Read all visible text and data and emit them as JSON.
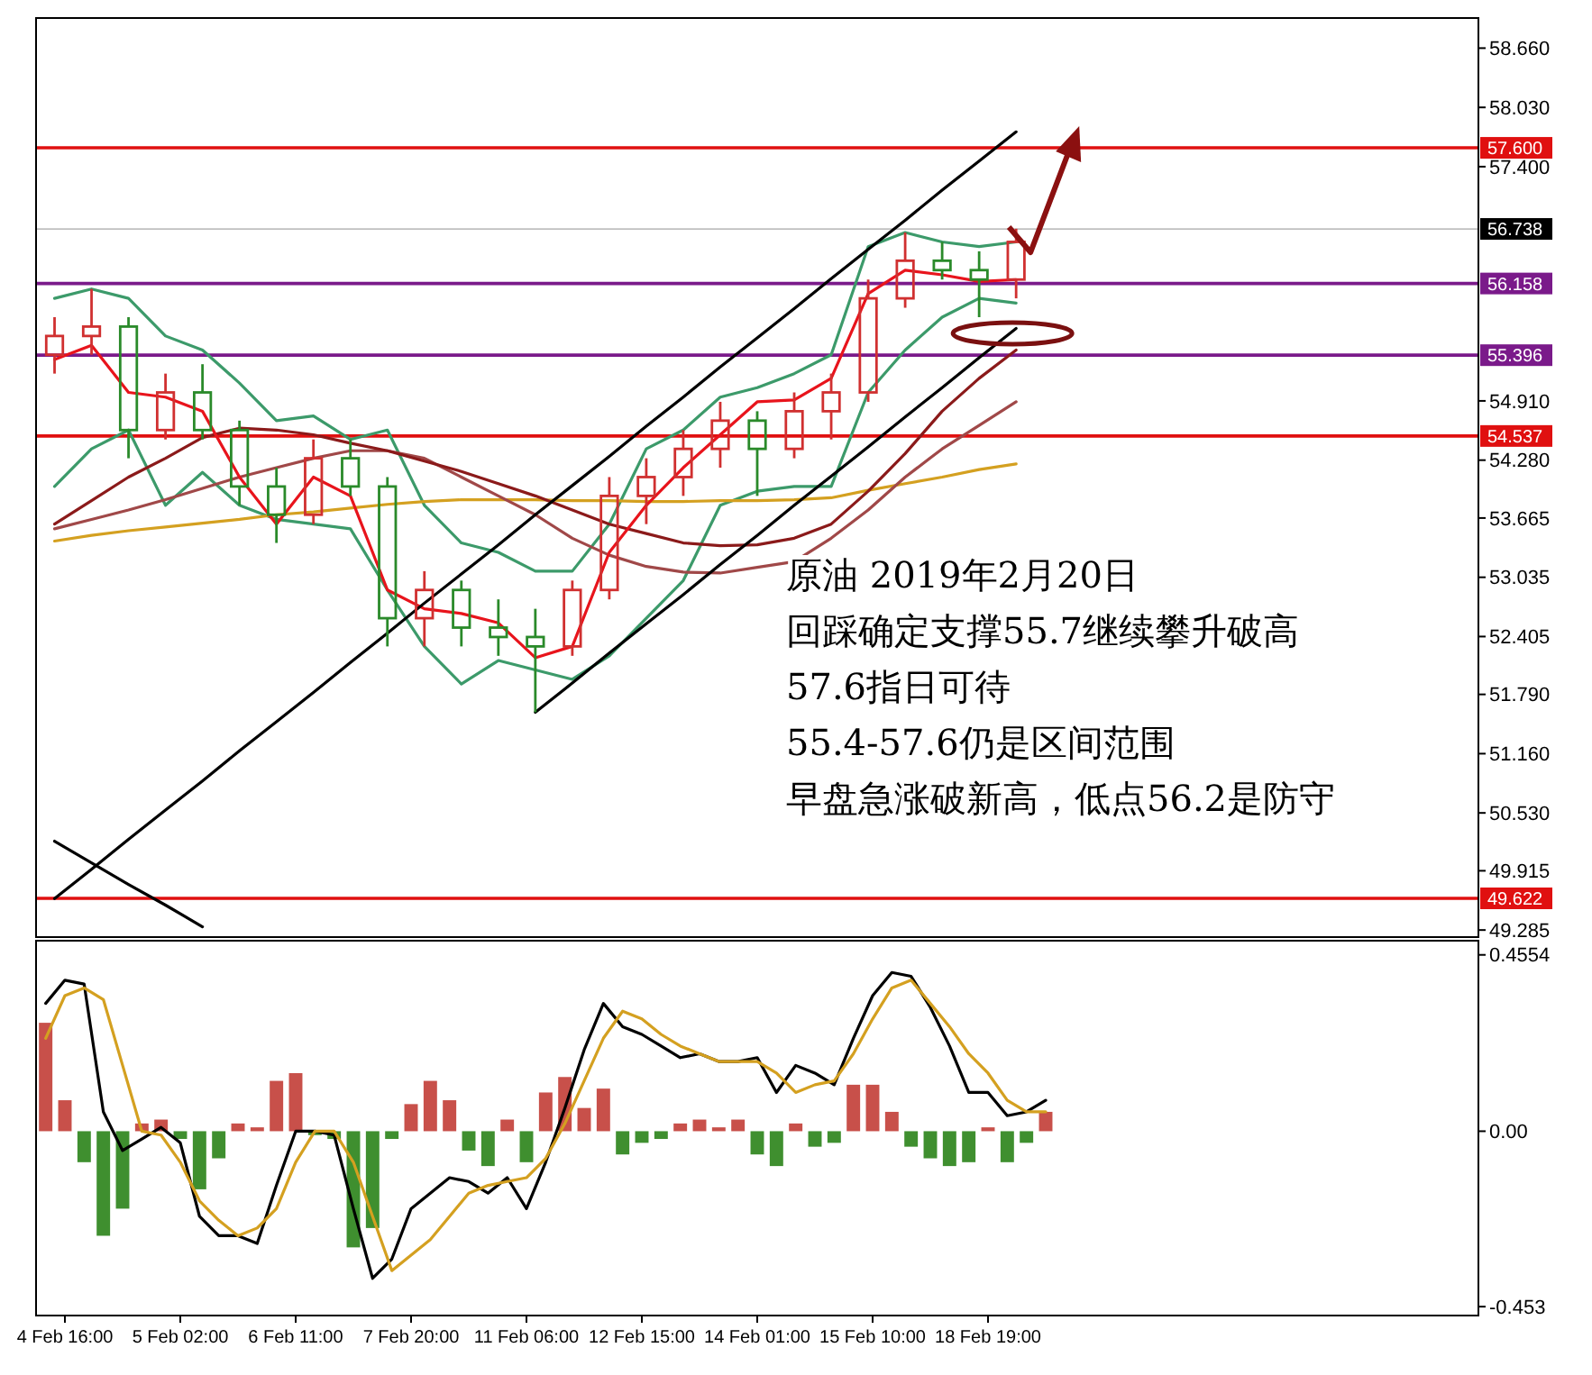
{
  "chart_data": [
    {
      "type": "candlestick",
      "ylim": [
        49.21,
        58.98
      ],
      "tick_labels": "y",
      "yticks": [
        {
          "value": 58.66,
          "label": "58.660"
        },
        {
          "value": 58.03,
          "label": "58.030"
        },
        {
          "value": 57.4,
          "label": "57.400"
        },
        {
          "value": 54.91,
          "label": "54.910"
        },
        {
          "value": 54.28,
          "label": "54.280"
        },
        {
          "value": 53.665,
          "label": "53.665"
        },
        {
          "value": 53.035,
          "label": "53.035"
        },
        {
          "value": 52.405,
          "label": "52.405"
        },
        {
          "value": 51.79,
          "label": "51.790"
        },
        {
          "value": 51.16,
          "label": "51.160"
        },
        {
          "value": 50.53,
          "label": "50.530"
        },
        {
          "value": 49.915,
          "label": "49.915"
        },
        {
          "value": 49.285,
          "label": "49.285"
        }
      ],
      "categories": [
        null,
        null,
        null,
        null,
        null,
        null,
        null,
        null,
        null,
        null,
        null,
        null,
        null,
        null,
        null,
        null,
        null,
        null,
        null,
        null,
        null,
        null,
        null,
        null,
        null,
        null,
        null,
        null,
        null,
        null,
        null,
        null,
        null,
        null,
        null,
        null,
        null,
        null,
        null
      ],
      "ohlc": [
        [
          55.4,
          55.8,
          55.2,
          55.6
        ],
        [
          55.6,
          56.1,
          55.4,
          55.7
        ],
        [
          55.7,
          55.8,
          54.3,
          54.6
        ],
        [
          54.6,
          55.2,
          54.5,
          55.0
        ],
        [
          55.0,
          55.3,
          54.5,
          54.6
        ],
        [
          54.6,
          54.7,
          53.8,
          54.0
        ],
        [
          54.0,
          54.2,
          53.4,
          53.7
        ],
        [
          53.7,
          54.5,
          53.6,
          54.3
        ],
        [
          54.3,
          54.5,
          53.9,
          54.0
        ],
        [
          54.0,
          54.1,
          52.3,
          52.6
        ],
        [
          52.6,
          53.1,
          52.3,
          52.9
        ],
        [
          52.9,
          53.0,
          52.3,
          52.5
        ],
        [
          52.5,
          52.8,
          52.2,
          52.4
        ],
        [
          52.4,
          52.7,
          51.6,
          52.3
        ],
        [
          52.3,
          53.0,
          52.2,
          52.9
        ],
        [
          52.9,
          54.1,
          52.8,
          53.9
        ],
        [
          53.9,
          54.3,
          53.6,
          54.1
        ],
        [
          54.1,
          54.6,
          53.9,
          54.4
        ],
        [
          54.4,
          54.9,
          54.2,
          54.7
        ],
        [
          54.7,
          54.8,
          53.9,
          54.4
        ],
        [
          54.4,
          55.0,
          54.3,
          54.8
        ],
        [
          54.8,
          55.2,
          54.5,
          55.0
        ],
        [
          55.0,
          56.2,
          54.9,
          56.0
        ],
        [
          56.0,
          56.7,
          55.9,
          56.4
        ],
        [
          56.4,
          56.6,
          56.2,
          56.3
        ],
        [
          56.3,
          56.5,
          55.8,
          56.2
        ],
        [
          56.2,
          56.74,
          56.0,
          56.6
        ],
        null,
        null,
        null,
        null,
        null,
        null,
        null,
        null,
        null,
        null,
        null,
        null
      ],
      "colors": [
        "#d03030",
        "#d03030",
        "#2a8a2a",
        "#d03030",
        "#2a8a2a",
        "#2a8a2a",
        "#2a8a2a",
        "#d03030",
        "#2a8a2a",
        "#2a8a2a",
        "#d03030",
        "#2a8a2a",
        "#2a8a2a",
        "#2a8a2a",
        "#d03030",
        "#d03030",
        "#d03030",
        "#d03030",
        "#d03030",
        "#2a8a2a",
        "#d03030",
        "#d03030",
        "#d03030",
        "#d03030",
        "#2a8a2a",
        "#2a8a2a",
        "#d03030",
        null,
        null,
        null,
        null,
        null,
        null,
        null,
        null,
        null,
        null,
        null,
        null
      ],
      "series": [
        {
          "type": "line",
          "color": "#3c9a6a",
          "values": [
            56.0,
            56.1,
            56.0,
            55.6,
            55.45,
            55.1,
            54.7,
            54.75,
            54.5,
            54.6,
            53.8,
            53.4,
            53.3,
            53.1,
            53.1,
            53.6,
            54.4,
            54.6,
            54.95,
            55.05,
            55.2,
            55.4,
            56.55,
            56.7,
            56.6,
            56.55,
            56.6,
            null,
            null,
            null,
            null,
            null,
            null,
            null,
            null,
            null,
            null,
            null,
            null
          ]
        },
        {
          "type": "line",
          "color": "#3c9a6a",
          "values": [
            54.0,
            54.4,
            54.6,
            53.8,
            54.15,
            53.8,
            53.65,
            53.6,
            53.55,
            52.9,
            52.3,
            51.9,
            52.15,
            52.05,
            51.95,
            52.2,
            52.6,
            53.0,
            53.8,
            53.95,
            54.0,
            54.0,
            55.0,
            55.45,
            55.8,
            56.0,
            55.95,
            null,
            null,
            null,
            null,
            null,
            null,
            null,
            null,
            null,
            null,
            null,
            null
          ]
        },
        {
          "type": "line",
          "color": "#d4a020",
          "values": [
            53.42,
            53.48,
            53.53,
            53.57,
            53.61,
            53.65,
            53.7,
            53.73,
            53.77,
            53.81,
            53.84,
            53.86,
            53.86,
            53.86,
            53.85,
            53.85,
            53.84,
            53.84,
            53.85,
            53.85,
            53.86,
            53.88,
            53.96,
            54.03,
            54.1,
            54.18,
            54.24,
            null,
            null,
            null,
            null,
            null,
            null,
            null,
            null,
            null,
            null,
            null,
            null
          ]
        },
        {
          "type": "line",
          "color": "#a04848",
          "values": [
            53.55,
            53.65,
            53.75,
            53.86,
            53.98,
            54.1,
            54.2,
            54.3,
            54.38,
            54.38,
            54.3,
            54.1,
            53.9,
            53.7,
            53.45,
            53.27,
            53.15,
            53.09,
            53.08,
            53.14,
            53.2,
            53.45,
            53.75,
            54.1,
            54.4,
            54.65,
            54.9,
            null,
            null,
            null,
            null,
            null,
            null,
            null,
            null,
            null,
            null,
            null,
            null
          ]
        },
        {
          "type": "line",
          "color": "#8b1a1a",
          "values": [
            53.6,
            53.85,
            54.1,
            54.3,
            54.52,
            54.62,
            54.6,
            54.55,
            54.46,
            54.38,
            54.27,
            54.16,
            54.03,
            53.9,
            53.75,
            53.6,
            53.5,
            53.4,
            53.37,
            53.38,
            53.45,
            53.6,
            53.95,
            54.35,
            54.8,
            55.15,
            55.45,
            null,
            null,
            null,
            null,
            null,
            null,
            null,
            null,
            null,
            null,
            null,
            null
          ]
        },
        {
          "type": "line",
          "color": "#e8141c",
          "values": [
            55.35,
            55.5,
            55.0,
            54.95,
            54.8,
            54.1,
            53.6,
            54.1,
            53.9,
            52.9,
            52.7,
            52.65,
            52.55,
            52.18,
            52.3,
            53.3,
            53.8,
            54.2,
            54.55,
            54.9,
            54.92,
            55.15,
            56.05,
            56.3,
            56.25,
            56.18,
            56.2,
            null,
            null,
            null,
            null,
            null,
            null,
            null,
            null,
            null,
            null,
            null,
            null
          ]
        },
        {
          "type": "line",
          "color": "#000000",
          "values": [
            49.62,
            49.93,
            50.25,
            50.56,
            50.87,
            51.19,
            51.5,
            51.81,
            52.13,
            52.44,
            52.76,
            53.07,
            53.38,
            53.7,
            54.01,
            54.32,
            54.64,
            54.95,
            55.27,
            55.58,
            55.89,
            56.21,
            56.52,
            56.83,
            57.15,
            57.46,
            57.77,
            null,
            null,
            null,
            null,
            null,
            null,
            null,
            null,
            null,
            null,
            null,
            null
          ]
        },
        {
          "type": "line",
          "color": "#000000",
          "values": [
            null,
            null,
            null,
            null,
            null,
            null,
            null,
            null,
            null,
            null,
            null,
            null,
            null,
            51.6,
            51.91,
            52.23,
            52.54,
            52.85,
            53.17,
            53.48,
            53.8,
            54.11,
            54.42,
            54.74,
            55.05,
            55.37,
            55.68,
            null,
            null,
            null,
            null,
            null,
            null,
            null,
            null,
            null,
            null,
            null,
            null
          ]
        },
        {
          "type": "line",
          "color": "#000000",
          "values": [
            50.23,
            50.0,
            49.77,
            49.55,
            49.32,
            null,
            null,
            null,
            null,
            null,
            null,
            null,
            null,
            null,
            null,
            null,
            null,
            null,
            null,
            null,
            null,
            null,
            null,
            null,
            null,
            null,
            null,
            null,
            null,
            null,
            null,
            null,
            null,
            null,
            null,
            null,
            null,
            null,
            null
          ]
        }
      ],
      "ref_lines": [
        {
          "axis": "y",
          "value": 57.6,
          "label": "57.600",
          "color": "#e01010"
        },
        {
          "axis": "y",
          "value": 56.738,
          "label": "56.738",
          "color": "#000000"
        },
        {
          "axis": "y",
          "value": 56.158,
          "label": "56.158",
          "color": "#7a1a8a"
        },
        {
          "axis": "y",
          "value": 55.396,
          "label": "55.396",
          "color": "#7a1a8a"
        },
        {
          "axis": "y",
          "value": 54.537,
          "label": "54.537",
          "color": "#e01010"
        },
        {
          "axis": "y",
          "value": 49.622,
          "label": "49.622",
          "color": "#e01010"
        }
      ],
      "annotations": [
        "原油 2019年2月20日",
        "回踩确定支撑55.7继续攀升破高",
        "57.6指日可待",
        "55.4-57.6仍是区间范围",
        "早盘急涨破新高，低点56.2是防守"
      ]
    },
    {
      "type": "bar",
      "ylim": [
        -0.476,
        0.492
      ],
      "yticks": [
        {
          "value": 0.4554,
          "label": "0.4554"
        },
        {
          "value": 0,
          "label": "0.00"
        },
        {
          "value": -0.453,
          "label": "-0.453"
        }
      ],
      "categories": [
        null,
        "4 Feb 16:00",
        null,
        null,
        null,
        null,
        null,
        "5 Feb 02:00",
        null,
        null,
        null,
        null,
        null,
        "6 Feb 11:00",
        null,
        null,
        null,
        null,
        null,
        "7 Feb 20:00",
        null,
        null,
        null,
        null,
        null,
        "11 Feb 06:00",
        null,
        null,
        null,
        null,
        null,
        "12 Feb 15:00",
        null,
        null,
        null,
        null,
        null,
        "14 Feb 01:00",
        null,
        null,
        null,
        null,
        null,
        "15 Feb 10:00",
        null,
        null,
        null,
        null,
        null,
        "18 Feb 19:00",
        null,
        null,
        null,
        null,
        null,
        null,
        null,
        null,
        null,
        null,
        null,
        null,
        null,
        null,
        null,
        null,
        null,
        null,
        null,
        null,
        null,
        null,
        null,
        null,
        null
      ],
      "values": [
        0.28,
        0.08,
        -0.08,
        -0.27,
        -0.2,
        0.02,
        0.03,
        -0.02,
        -0.15,
        -0.07,
        0.02,
        0.01,
        0.13,
        0.15,
        -0.01,
        -0.02,
        -0.3,
        -0.25,
        -0.02,
        0.07,
        0.13,
        0.08,
        -0.05,
        -0.09,
        0.03,
        -0.08,
        0.1,
        0.14,
        0.06,
        0.11,
        -0.06,
        -0.03,
        -0.02,
        0.02,
        0.03,
        0.01,
        0.03,
        -0.06,
        -0.09,
        0.02,
        -0.04,
        -0.03,
        0.12,
        0.12,
        0.05,
        -0.04,
        -0.07,
        -0.09,
        -0.08,
        0.01,
        -0.08,
        -0.03,
        0.05,
        null,
        null,
        null,
        null,
        null,
        null,
        null,
        null,
        null,
        null,
        null,
        null,
        null,
        null,
        null,
        null,
        null,
        null,
        null,
        null,
        null,
        null
      ],
      "colors": [
        "#c8504a",
        "#c8504a",
        "#3f8f2f",
        "#3f8f2f",
        "#3f8f2f",
        "#c8504a",
        "#c8504a",
        "#3f8f2f",
        "#3f8f2f",
        "#3f8f2f",
        "#c8504a",
        "#c8504a",
        "#c8504a",
        "#c8504a",
        "#3f8f2f",
        "#3f8f2f",
        "#3f8f2f",
        "#3f8f2f",
        "#3f8f2f",
        "#c8504a",
        "#c8504a",
        "#c8504a",
        "#3f8f2f",
        "#3f8f2f",
        "#c8504a",
        "#3f8f2f",
        "#c8504a",
        "#c8504a",
        "#c8504a",
        "#c8504a",
        "#3f8f2f",
        "#3f8f2f",
        "#3f8f2f",
        "#c8504a",
        "#c8504a",
        "#c8504a",
        "#c8504a",
        "#3f8f2f",
        "#3f8f2f",
        "#c8504a",
        "#3f8f2f",
        "#3f8f2f",
        "#c8504a",
        "#c8504a",
        "#c8504a",
        "#3f8f2f",
        "#3f8f2f",
        "#3f8f2f",
        "#3f8f2f",
        "#c8504a",
        "#3f8f2f",
        "#3f8f2f",
        "#c8504a",
        null,
        null,
        null,
        null,
        null,
        null,
        null,
        null,
        null,
        null,
        null,
        null,
        null,
        null,
        null,
        null,
        null,
        null,
        null,
        null,
        null,
        null
      ],
      "series": [
        {
          "type": "line",
          "color": "#000000",
          "values": [
            0.33,
            0.39,
            0.38,
            0.05,
            -0.05,
            -0.02,
            0.01,
            -0.03,
            -0.22,
            -0.27,
            -0.27,
            -0.29,
            -0.14,
            0.0,
            0.0,
            -0.01,
            -0.2,
            -0.38,
            -0.33,
            -0.2,
            -0.16,
            -0.12,
            -0.13,
            -0.16,
            -0.12,
            -0.2,
            -0.08,
            0.06,
            0.21,
            0.33,
            0.27,
            0.25,
            0.22,
            0.19,
            0.2,
            0.18,
            0.18,
            0.19,
            0.1,
            0.17,
            0.15,
            0.12,
            0.24,
            0.35,
            0.41,
            0.4,
            0.32,
            0.22,
            0.1,
            0.1,
            0.04,
            0.05,
            0.08,
            null,
            null,
            null,
            null,
            null,
            null,
            null,
            null,
            null,
            null,
            null,
            null,
            null,
            null,
            null,
            null,
            null,
            null,
            null,
            null,
            null,
            null
          ]
        },
        {
          "type": "line",
          "color": "#d4a020",
          "values": [
            0.24,
            0.35,
            0.37,
            0.34,
            0.17,
            0.0,
            -0.01,
            -0.08,
            -0.18,
            -0.23,
            -0.27,
            -0.25,
            -0.2,
            -0.08,
            0.0,
            0.0,
            -0.08,
            -0.22,
            -0.36,
            -0.32,
            -0.28,
            -0.22,
            -0.16,
            -0.14,
            -0.13,
            -0.12,
            -0.07,
            0.02,
            0.13,
            0.24,
            0.31,
            0.29,
            0.25,
            0.22,
            0.2,
            0.18,
            0.18,
            0.18,
            0.15,
            0.1,
            0.12,
            0.13,
            0.2,
            0.29,
            0.37,
            0.39,
            0.33,
            0.27,
            0.2,
            0.15,
            0.08,
            0.05,
            0.05,
            null,
            null,
            null,
            null,
            null,
            null,
            null,
            null,
            null,
            null,
            null,
            null,
            null,
            null,
            null,
            null,
            null,
            null,
            null,
            null,
            null,
            null
          ]
        }
      ]
    }
  ]
}
